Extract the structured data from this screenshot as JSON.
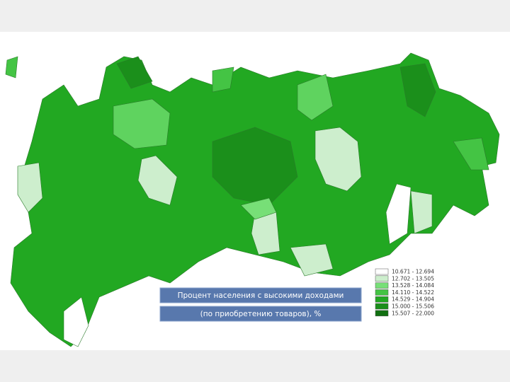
{
  "caption": {
    "line1": "Процент населения с высокими доходами",
    "line2": "(по приобретению товаров), %"
  },
  "legend": [
    {
      "label": "10.671 - 12.694",
      "color": "#ffffff"
    },
    {
      "label": "12.702 - 13.505",
      "color": "#cdeecd"
    },
    {
      "label": "13.528 - 14.084",
      "color": "#77df77"
    },
    {
      "label": "14.110 - 14.522",
      "color": "#44c444"
    },
    {
      "label": "14.529 - 14.904",
      "color": "#22a822"
    },
    {
      "label": "15.000 - 15.506",
      "color": "#1b8f1b"
    },
    {
      "label": "15.507 - 22.000",
      "color": "#117011"
    }
  ]
}
